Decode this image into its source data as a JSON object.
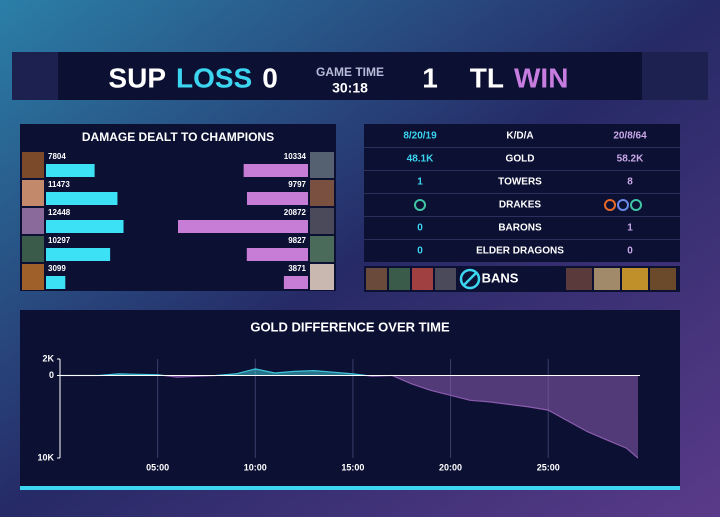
{
  "header": {
    "left_team": "SUP",
    "left_result": "LOSS",
    "left_score": 0,
    "game_time_label": "GAME TIME",
    "game_time": "30:18",
    "right_score": 1,
    "right_team": "TL",
    "right_result": "WIN"
  },
  "damage": {
    "title": "DAMAGE DEALT TO CHAMPIONS",
    "left": [
      7804,
      11473,
      12448,
      10297,
      3099
    ],
    "right": [
      10334,
      9797,
      20872,
      9827,
      3871
    ]
  },
  "stats": {
    "rows": [
      {
        "left": "8/20/19",
        "label": "K/D/A",
        "right": "20/8/64"
      },
      {
        "left": "48.1K",
        "label": "GOLD",
        "right": "58.2K"
      },
      {
        "left": "1",
        "label": "TOWERS",
        "right": "8"
      },
      {
        "label": "DRAKES"
      },
      {
        "left": "0",
        "label": "BARONS",
        "right": "1"
      },
      {
        "left": "0",
        "label": "ELDER DRAGONS",
        "right": "0"
      }
    ]
  },
  "bans": {
    "label": "BANS"
  },
  "chart_data": {
    "type": "area",
    "title": "GOLD DIFFERENCE OVER TIME",
    "x": [
      0,
      1,
      2,
      3,
      4,
      5,
      6,
      7,
      8,
      9,
      10,
      11,
      12,
      13,
      14,
      15,
      16,
      17,
      18,
      19,
      20,
      21,
      22,
      23,
      24,
      25,
      26,
      27,
      28,
      29,
      29.6
    ],
    "values": [
      0,
      0,
      0,
      200,
      150,
      100,
      -200,
      -100,
      0,
      200,
      800,
      300,
      500,
      600,
      400,
      200,
      -100,
      0,
      -1000,
      -1800,
      -2400,
      -3000,
      -3200,
      -3500,
      -3800,
      -4200,
      -5500,
      -6800,
      -7800,
      -8800,
      -10000
    ],
    "xlim": [
      0,
      29.7
    ],
    "ylim": [
      -10000,
      2000
    ],
    "xticks": [
      {
        "value": 5,
        "label": "05:00"
      },
      {
        "value": 10,
        "label": "10:00"
      },
      {
        "value": 15,
        "label": "15:00"
      },
      {
        "value": 20,
        "label": "20:00"
      },
      {
        "value": 25,
        "label": "25:00"
      }
    ],
    "yticks": [
      {
        "value": 2000,
        "label": "2K"
      },
      0,
      {
        "value": -10000,
        "label": "10K"
      }
    ],
    "colors": {
      "positive": "#3fc4d6",
      "negative": "#8a5cae"
    },
    "grid": true
  }
}
